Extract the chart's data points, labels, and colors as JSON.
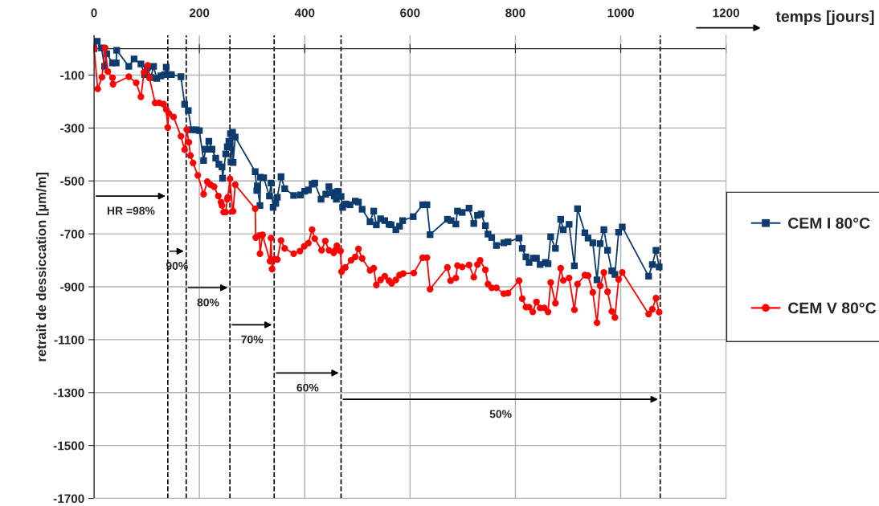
{
  "chart_data": {
    "type": "line",
    "xlabel": "temps [jours]",
    "ylabel": "retrait de dessiccation [µm/m]",
    "xlim": [
      0,
      1200
    ],
    "xticks": [
      0,
      200,
      400,
      600,
      800,
      1000,
      1200
    ],
    "ylim": [
      -1700,
      50
    ],
    "yticks": [
      {
        "value": -1700,
        "label": "-1700"
      },
      {
        "value": -1500,
        "label": "-1500"
      },
      {
        "value": -1300,
        "label": "-1300"
      },
      {
        "value": -1100,
        "label": "-1100"
      },
      {
        "value": -900,
        "label": "-900"
      },
      {
        "value": -700,
        "label": "-700"
      },
      {
        "value": -500,
        "label": "-500"
      },
      {
        "value": -300,
        "label": "-300"
      },
      {
        "value": -100,
        "label": "-100"
      }
    ],
    "grid": true,
    "legend": "right",
    "line_style": "solid",
    "series": [
      {
        "name": "CEM I 80°C",
        "color": "#0d3b6e",
        "marker": "square",
        "x": [
          0,
          6,
          14,
          20,
          24,
          35,
          42,
          43,
          66,
          76,
          89,
          96,
          101,
          108,
          113,
          119,
          127,
          134,
          137,
          140,
          147,
          165,
          172,
          179,
          185,
          194,
          200,
          208,
          212,
          218,
          224,
          231,
          237,
          243,
          244,
          250,
          253,
          256,
          259,
          260,
          263,
          264,
          268,
          306,
          309,
          310,
          315,
          316,
          322,
          333,
          336,
          340,
          345,
          348,
          355,
          362,
          379,
          392,
          400,
          407,
          414,
          419,
          431,
          440,
          446,
          452,
          456,
          460,
          463,
          469,
          472,
          478,
          486,
          496,
          502,
          509,
          524,
          531,
          536,
          544,
          552,
          560,
          564,
          573,
          580,
          586,
          606,
          624,
          632,
          638,
          671,
          678,
          687,
          690,
          699,
          712,
          721,
          728,
          735,
          743,
          748,
          755,
          764,
          778,
          786,
          807,
          813,
          820,
          826,
          834,
          840,
          847,
          857,
          862,
          867,
          876,
          886,
          891,
          902,
          912,
          918,
          932,
          938,
          947,
          955,
          961,
          968,
          975,
          983,
          989,
          996,
          1003,
          1053,
          1060,
          1067,
          1073
        ],
        "values": [
          0,
          28,
          3,
          -67,
          -19,
          -54,
          -54,
          -6,
          -67,
          -39,
          -58,
          -98,
          -73,
          -109,
          -67,
          -112,
          -103,
          -98,
          -70,
          -98,
          -98,
          -106,
          -210,
          -234,
          -307,
          -307,
          -310,
          -423,
          -380,
          -350,
          -380,
          -414,
          -437,
          -447,
          -490,
          -398,
          -371,
          -350,
          -321,
          -428,
          -316,
          -430,
          -334,
          -465,
          -536,
          -519,
          -593,
          -486,
          -488,
          -557,
          -508,
          -600,
          -585,
          -562,
          -484,
          -529,
          -555,
          -553,
          -539,
          -534,
          -512,
          -508,
          -569,
          -550,
          -522,
          -544,
          -557,
          -569,
          -539,
          -559,
          -600,
          -587,
          -590,
          -576,
          -580,
          -607,
          -654,
          -614,
          -666,
          -643,
          -650,
          -664,
          -666,
          -684,
          -671,
          -650,
          -635,
          -590,
          -590,
          -703,
          -645,
          -650,
          -663,
          -614,
          -619,
          -603,
          -661,
          -630,
          -625,
          -669,
          -701,
          -714,
          -744,
          -734,
          -730,
          -716,
          -755,
          -787,
          -808,
          -792,
          -792,
          -816,
          -808,
          -813,
          -711,
          -755,
          -645,
          -684,
          -664,
          -821,
          -605,
          -696,
          -716,
          -734,
          -874,
          -737,
          -684,
          -762,
          -840,
          -853,
          -694,
          -674,
          -860,
          -816,
          -762,
          -825
        ]
      },
      {
        "name": "CEM V 80°C",
        "color": "#ff0000",
        "marker": "circle",
        "x": [
          0,
          7,
          15,
          21,
          26,
          35,
          36,
          66,
          80,
          89,
          95,
          102,
          105,
          116,
          124,
          132,
          137,
          140,
          142,
          151,
          165,
          172,
          176,
          180,
          183,
          188,
          197,
          208,
          215,
          221,
          228,
          236,
          241,
          243,
          246,
          250,
          253,
          254,
          258,
          263,
          264,
          268,
          306,
          307,
          314,
          315,
          320,
          334,
          336,
          338,
          343,
          348,
          355,
          362,
          379,
          391,
          399,
          407,
          414,
          419,
          432,
          439,
          446,
          455,
          458,
          461,
          468,
          470,
          477,
          488,
          496,
          502,
          509,
          524,
          531,
          536,
          544,
          552,
          560,
          565,
          573,
          580,
          587,
          607,
          624,
          632,
          638,
          671,
          677,
          687,
          690,
          699,
          712,
          721,
          728,
          733,
          743,
          748,
          755,
          764,
          778,
          786,
          807,
          813,
          820,
          826,
          833,
          840,
          847,
          855,
          862,
          867,
          876,
          886,
          891,
          902,
          912,
          918,
          932,
          938,
          947,
          955,
          961,
          968,
          975,
          983,
          989,
          996,
          1003,
          1053,
          1060,
          1067,
          1073
        ],
        "values": [
          0,
          -152,
          -108,
          3,
          -86,
          -110,
          -134,
          -106,
          -129,
          -182,
          -89,
          -63,
          -110,
          -205,
          -205,
          -210,
          -230,
          -298,
          -245,
          -258,
          -331,
          -382,
          -306,
          -354,
          -404,
          -432,
          -479,
          -550,
          -503,
          -514,
          -522,
          -557,
          -580,
          -593,
          -618,
          -618,
          -569,
          -562,
          -492,
          -615,
          -614,
          -514,
          -605,
          -714,
          -706,
          -775,
          -704,
          -803,
          -716,
          -833,
          -796,
          -797,
          -725,
          -755,
          -775,
          -765,
          -747,
          -735,
          -684,
          -718,
          -762,
          -727,
          -762,
          -772,
          -762,
          -745,
          -765,
          -843,
          -827,
          -800,
          -787,
          -757,
          -793,
          -838,
          -830,
          -893,
          -874,
          -860,
          -877,
          -887,
          -874,
          -856,
          -850,
          -848,
          -790,
          -790,
          -909,
          -827,
          -877,
          -867,
          -820,
          -825,
          -818,
          -864,
          -816,
          -800,
          -836,
          -890,
          -904,
          -904,
          -926,
          -924,
          -877,
          -945,
          -977,
          -977,
          -995,
          -957,
          -980,
          -980,
          -995,
          -884,
          -962,
          -830,
          -876,
          -867,
          -987,
          -890,
          -856,
          -858,
          -921,
          -1036,
          -896,
          -846,
          -919,
          -993,
          -1016,
          -872,
          -846,
          -1003,
          -985,
          -943,
          -996
        ]
      }
    ],
    "ref_lines": [
      {
        "axis": "x",
        "value": 140,
        "line_style": "dashed",
        "color": "#000000"
      },
      {
        "axis": "x",
        "value": 175,
        "line_style": "dashed",
        "color": "#000000"
      },
      {
        "axis": "x",
        "value": 258,
        "line_style": "dashed",
        "color": "#000000"
      },
      {
        "axis": "x",
        "value": 342,
        "line_style": "dashed",
        "color": "#000000"
      },
      {
        "axis": "x",
        "value": 469,
        "line_style": "dashed",
        "color": "#000000"
      },
      {
        "axis": "x",
        "value": 1075,
        "line_style": "dashed",
        "color": "#000000"
      }
    ],
    "annotations": [
      "HR =98%",
      "90%",
      "80%",
      "70%",
      "60%",
      "50%"
    ]
  }
}
